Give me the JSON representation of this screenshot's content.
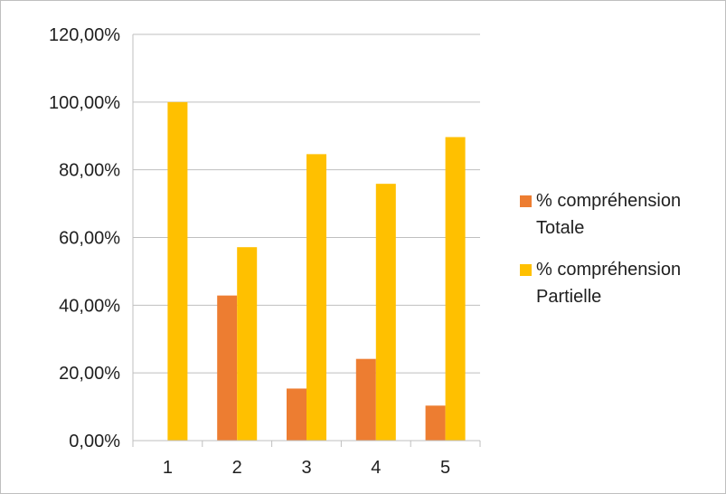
{
  "chart_data": {
    "type": "bar",
    "title": "",
    "xlabel": "",
    "ylabel": "",
    "categories": [
      "1",
      "2",
      "3",
      "4",
      "5"
    ],
    "series": [
      {
        "name": "% compréhension Totale",
        "color": "#ED7D31",
        "values": [
          0,
          42.86,
          15.38,
          24.14,
          10.34
        ]
      },
      {
        "name": "% compréhension Partielle",
        "color": "#FFC000",
        "values": [
          100,
          57.14,
          84.62,
          75.86,
          89.66
        ]
      }
    ],
    "ylim": [
      0,
      120
    ],
    "yticks": [
      0,
      20,
      40,
      60,
      80,
      100,
      120
    ],
    "ytick_labels": [
      "0,00%",
      "20,00%",
      "40,00%",
      "60,00%",
      "80,00%",
      "100,00%",
      "120,00%"
    ],
    "grid": true,
    "legend_position": "right"
  }
}
